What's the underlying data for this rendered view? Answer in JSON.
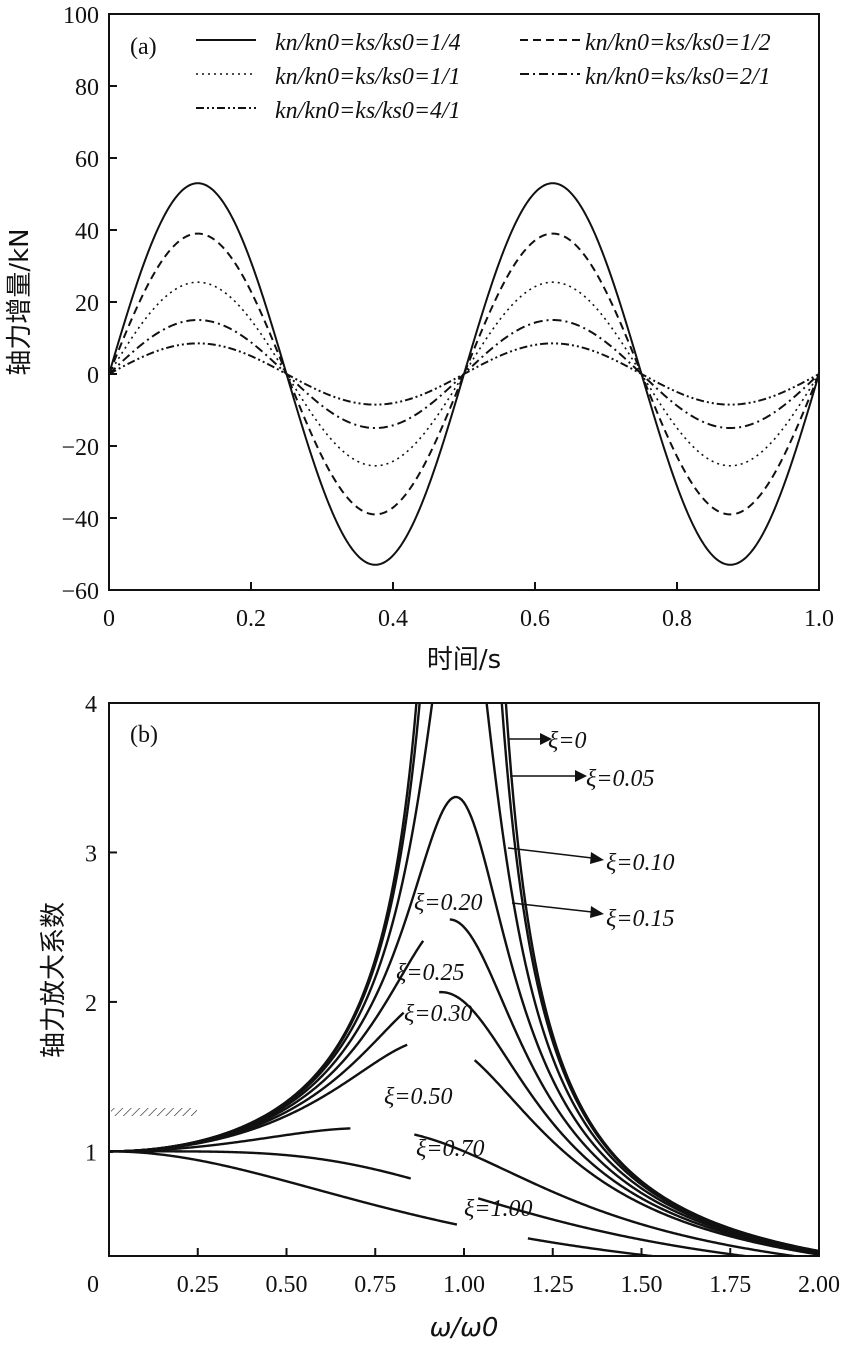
{
  "colors": {
    "axis": "#111111",
    "series": "#111111",
    "background": "#ffffff"
  },
  "chart_data": [
    {
      "panel": "(a)",
      "type": "line",
      "xlabel": "时间/s",
      "ylabel": "轴力增量/kN",
      "xlim": [
        0,
        1.0
      ],
      "ylim": [
        -60,
        100
      ],
      "xticks": [
        "0",
        "0.2",
        "0.4",
        "0.6",
        "0.8",
        "1.0"
      ],
      "yticks": [
        "−60",
        "−40",
        "−20",
        "0",
        "20",
        "40",
        "60",
        "80",
        "100"
      ],
      "period_s": 0.5,
      "series": [
        {
          "name": "kn/kn0=ks/ks0=1/4",
          "amplitude_kN": 53,
          "style": "solid"
        },
        {
          "name": "kn/kn0=ks/ks0=1/2",
          "amplitude_kN": 39,
          "style": "dashed"
        },
        {
          "name": "kn/kn0=ks/ks0=1/1",
          "amplitude_kN": 25.5,
          "style": "dotted"
        },
        {
          "name": "kn/kn0=ks/ks0=2/1",
          "amplitude_kN": 15,
          "style": "dashdot"
        },
        {
          "name": "kn/kn0=ks/ks0=4/1",
          "amplitude_kN": 8.5,
          "style": "dashdotdot"
        }
      ],
      "legend": {
        "placement": "top-right",
        "columns": 2
      }
    },
    {
      "panel": "(b)",
      "type": "line",
      "xlabel": "ω/ω0",
      "ylabel": "轴力放大系数",
      "xlim": [
        0,
        2.0
      ],
      "ylim": [
        0.3,
        4
      ],
      "xticks": [
        "0",
        "0.25",
        "0.50",
        "0.75",
        "1.00",
        "1.25",
        "1.50",
        "1.75",
        "2.00"
      ],
      "yticks": [
        "1",
        "2",
        "3",
        "4"
      ],
      "series": [
        {
          "damping": 0,
          "label": "ξ=0"
        },
        {
          "damping": 0.05,
          "label": "ξ=0.05"
        },
        {
          "damping": 0.1,
          "label": "ξ=0.10"
        },
        {
          "damping": 0.15,
          "label": "ξ=0.15"
        },
        {
          "damping": 0.2,
          "label": "ξ=0.20"
        },
        {
          "damping": 0.25,
          "label": "ξ=0.25"
        },
        {
          "damping": 0.3,
          "label": "ξ=0.30"
        },
        {
          "damping": 0.5,
          "label": "ξ=0.50"
        },
        {
          "damping": 0.7,
          "label": "ξ=0.70"
        },
        {
          "damping": 1.0,
          "label": "ξ=1.00"
        }
      ]
    }
  ]
}
